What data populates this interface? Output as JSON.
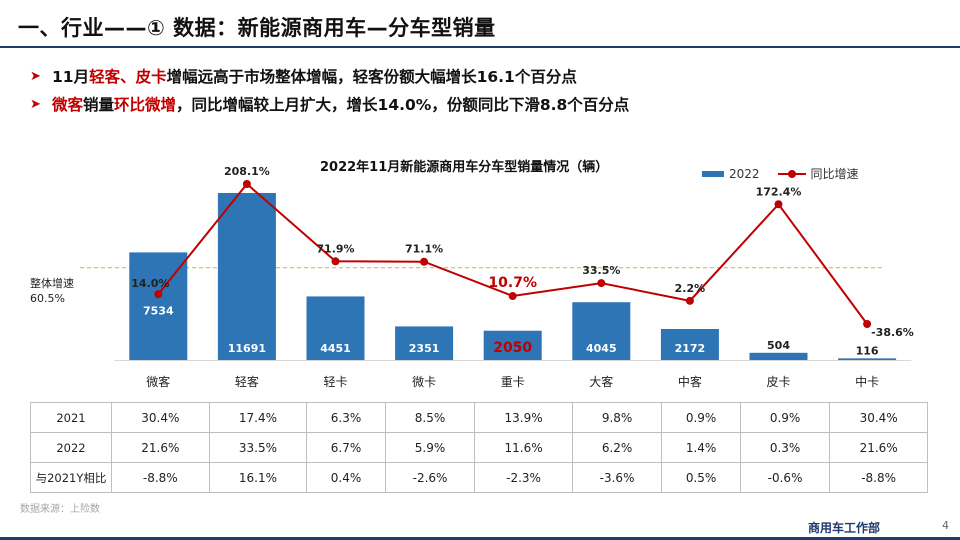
{
  "page": {
    "title": "一、行业——① 数据：新能源商用车—分车型销量",
    "bullets": [
      {
        "parts": [
          {
            "text": "11月",
            "hl": false
          },
          {
            "text": "轻客、皮卡",
            "hl": true
          },
          {
            "text": "增幅远高于市场整体增幅，轻客份额大幅增长16.1个百分点",
            "hl": false
          }
        ]
      },
      {
        "parts": [
          {
            "text": "微客",
            "hl": true
          },
          {
            "text": "销量",
            "hl": false
          },
          {
            "text": "环比微增",
            "hl": true
          },
          {
            "text": "，同比增幅较上月扩大，增长14.0%，份额同比下滑8.8个百分点",
            "hl": false
          }
        ]
      }
    ],
    "source": "数据来源：上险数",
    "footer_dept": "商用车工作部",
    "page_number": "4"
  },
  "colors": {
    "bar": "#2e75b6",
    "line": "#c00000",
    "highlight": "#c00000",
    "accent": "#1f3a6b",
    "reference_line": "#d9a75a"
  },
  "chart_data": {
    "type": "bar",
    "title": "2022年11月新能源商用车分车型销量情况（辆）",
    "categories": [
      "微客",
      "轻客",
      "轻卡",
      "微卡",
      "重卡",
      "大客",
      "中客",
      "皮卡",
      "中卡"
    ],
    "series": [
      {
        "name": "2022",
        "type": "bar",
        "values": [
          7534,
          11691,
          4451,
          2351,
          2050,
          4045,
          2172,
          504,
          116
        ]
      },
      {
        "name": "同比增速",
        "type": "line",
        "unit": "%",
        "values": [
          14.0,
          208.1,
          71.9,
          71.1,
          10.7,
          33.5,
          2.2,
          172.4,
          -38.6
        ],
        "labels": [
          "14.0%",
          "208.1%",
          "71.9%",
          "71.1%",
          "10.7%",
          "33.5%",
          "2.2%",
          "172.4%",
          "-38.6%"
        ]
      }
    ],
    "highlighted_categories": [
      "重卡"
    ],
    "reference_line": {
      "label": "整体增速",
      "value": 60.5,
      "value_label": "60.5%"
    },
    "legend_position": "top-right",
    "grid": false
  },
  "table": {
    "rows": [
      {
        "label": "2021",
        "values": [
          "30.4%",
          "17.4%",
          "6.3%",
          "8.5%",
          "13.9%",
          "9.8%",
          "0.9%",
          "0.9%",
          "30.4%"
        ]
      },
      {
        "label": "2022",
        "values": [
          "21.6%",
          "33.5%",
          "6.7%",
          "5.9%",
          "11.6%",
          "6.2%",
          "1.4%",
          "0.3%",
          "21.6%"
        ]
      },
      {
        "label": "与2021Y相比",
        "values": [
          "-8.8%",
          "16.1%",
          "0.4%",
          "-2.6%",
          "-2.3%",
          "-3.6%",
          "0.5%",
          "-0.6%",
          "-8.8%"
        ]
      }
    ]
  }
}
